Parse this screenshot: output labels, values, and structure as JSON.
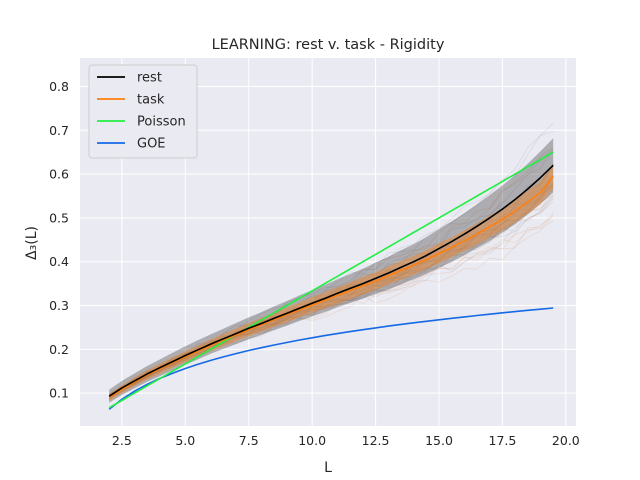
{
  "chart_data": {
    "type": "line",
    "title": "LEARNING: rest v. task - Rigidity",
    "xlabel": "L",
    "ylabel": "Δ₃(L)",
    "xlim": [
      0.85,
      20.4
    ],
    "ylim": [
      0.025,
      0.865
    ],
    "xticks": [
      "2.5",
      "5.0",
      "7.5",
      "10.0",
      "12.5",
      "15.0",
      "17.5",
      "20.0"
    ],
    "yticks": [
      "0.1",
      "0.2",
      "0.3",
      "0.4",
      "0.5",
      "0.6",
      "0.7",
      "0.8"
    ],
    "grid": true,
    "legend_position": "top-left",
    "background": "#eaeaf2",
    "x": [
      2.0,
      2.5,
      3.0,
      3.5,
      4.0,
      4.5,
      5.0,
      5.5,
      6.0,
      6.5,
      7.0,
      7.5,
      8.0,
      8.5,
      9.0,
      9.5,
      10.0,
      10.5,
      11.0,
      11.5,
      12.0,
      12.5,
      13.0,
      13.5,
      14.0,
      14.5,
      15.0,
      15.5,
      16.0,
      16.5,
      17.0,
      17.5,
      18.0,
      18.5,
      19.0,
      19.5
    ],
    "series": [
      {
        "name": "rest",
        "color": "#000000",
        "values": [
          0.093,
          0.112,
          0.128,
          0.144,
          0.158,
          0.172,
          0.186,
          0.199,
          0.212,
          0.224,
          0.236,
          0.248,
          0.259,
          0.271,
          0.282,
          0.294,
          0.305,
          0.316,
          0.328,
          0.339,
          0.35,
          0.362,
          0.374,
          0.387,
          0.4,
          0.414,
          0.43,
          0.446,
          0.463,
          0.481,
          0.5,
          0.52,
          0.542,
          0.566,
          0.592,
          0.62
        ],
        "band": [
          0.015,
          0.016,
          0.017,
          0.018,
          0.019,
          0.02,
          0.021,
          0.022,
          0.022,
          0.023,
          0.024,
          0.025,
          0.026,
          0.027,
          0.028,
          0.029,
          0.03,
          0.031,
          0.032,
          0.033,
          0.034,
          0.036,
          0.037,
          0.039,
          0.04,
          0.042,
          0.044,
          0.046,
          0.048,
          0.05,
          0.052,
          0.054,
          0.056,
          0.058,
          0.06,
          0.062
        ]
      },
      {
        "name": "task",
        "color": "#ff7f0e",
        "values": [
          0.09,
          0.109,
          0.126,
          0.142,
          0.156,
          0.17,
          0.183,
          0.196,
          0.209,
          0.221,
          0.233,
          0.245,
          0.256,
          0.268,
          0.279,
          0.29,
          0.301,
          0.312,
          0.323,
          0.334,
          0.345,
          0.356,
          0.368,
          0.38,
          0.392,
          0.405,
          0.419,
          0.433,
          0.448,
          0.463,
          0.48,
          0.497,
          0.516,
          0.536,
          0.558,
          0.595
        ],
        "band": [
          0.008,
          0.009,
          0.01,
          0.011,
          0.012,
          0.012,
          0.013,
          0.013,
          0.014,
          0.014,
          0.015,
          0.015,
          0.016,
          0.016,
          0.017,
          0.017,
          0.018,
          0.018,
          0.019,
          0.019,
          0.02,
          0.02,
          0.021,
          0.021,
          0.022,
          0.022,
          0.023,
          0.023,
          0.024,
          0.024,
          0.025,
          0.025,
          0.026,
          0.026,
          0.027,
          0.028
        ]
      },
      {
        "name": "Poisson",
        "color": "#22ee44",
        "values": [
          0.0667,
          0.0833,
          0.1,
          0.1167,
          0.1333,
          0.15,
          0.1667,
          0.1833,
          0.2,
          0.2167,
          0.2333,
          0.25,
          0.2667,
          0.2833,
          0.3,
          0.3167,
          0.3333,
          0.35,
          0.3667,
          0.3833,
          0.4,
          0.4167,
          0.4333,
          0.45,
          0.4667,
          0.4833,
          0.5,
          0.5167,
          0.5333,
          0.55,
          0.5667,
          0.5833,
          0.6,
          0.6167,
          0.6333,
          0.65
        ]
      },
      {
        "name": "GOE",
        "color": "#1569e6",
        "values": [
          0.0634,
          0.086,
          0.1045,
          0.1201,
          0.1336,
          0.1456,
          0.1563,
          0.1659,
          0.1747,
          0.1828,
          0.1903,
          0.1973,
          0.2038,
          0.2099,
          0.2157,
          0.2212,
          0.2264,
          0.2313,
          0.236,
          0.2405,
          0.2448,
          0.249,
          0.253,
          0.2568,
          0.2605,
          0.2641,
          0.2675,
          0.2709,
          0.2741,
          0.2772,
          0.2803,
          0.2833,
          0.2862,
          0.289,
          0.2917,
          0.2944
        ]
      }
    ]
  }
}
